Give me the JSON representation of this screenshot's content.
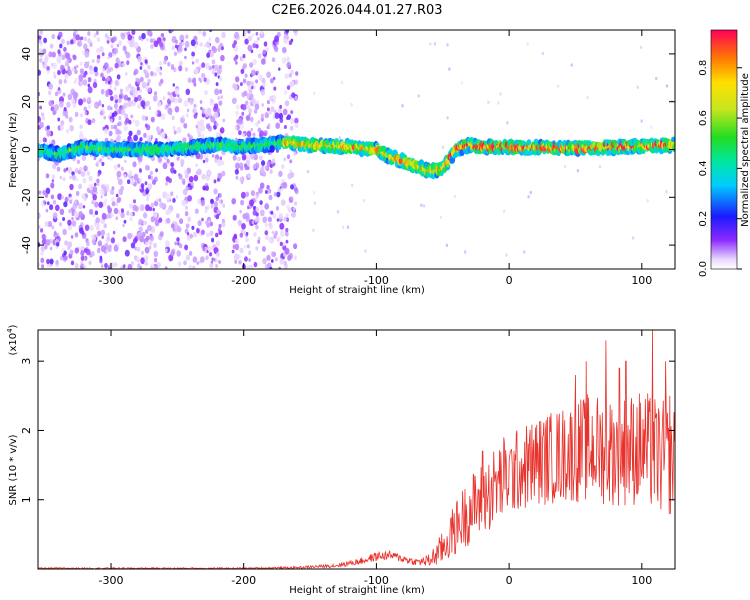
{
  "title": "C2E6.2026.044.01.27.R03",
  "spectrogram": {
    "type": "heatmap",
    "xlabel": "Height of straight line (km)",
    "ylabel": "Frequency (Hz)",
    "xlim": [
      -355,
      125
    ],
    "ylim": [
      -50,
      50
    ],
    "xticks": [
      -300,
      -200,
      -100,
      0,
      100
    ],
    "yticks": [
      -40,
      -20,
      0,
      20,
      40
    ],
    "noise_bands": [
      [
        -355,
        -300
      ],
      [
        -300,
        -215
      ],
      [
        -208,
        -160
      ]
    ],
    "signal_ridge": {
      "x": [
        -355,
        -340,
        -320,
        -300,
        -260,
        -220,
        -200,
        -170,
        -150,
        -120,
        -100,
        -90,
        -80,
        -70,
        -60,
        -50,
        -45,
        -40,
        -30,
        -20,
        0,
        40,
        80,
        125
      ],
      "y": [
        0,
        -2,
        1,
        0,
        0,
        2,
        1,
        3,
        2,
        1,
        0,
        -3,
        -5,
        -7,
        -9,
        -8,
        -4,
        0,
        2,
        1,
        1,
        0.5,
        1,
        2
      ]
    },
    "colorbar": {
      "label": "Normalized spectral amplitude",
      "range": [
        0,
        0.95
      ],
      "ticks": [
        "0.0",
        "0.2",
        "0.4",
        "0.6",
        "0.8"
      ]
    }
  },
  "chart_data": {
    "type": "line",
    "xlabel": "Height of straight line (km)",
    "ylabel": "SNR (10 * v/v)",
    "exponent_label": "(x10",
    "exponent_power": "4",
    "exponent_close": ")",
    "xlim": [
      -355,
      125
    ],
    "ylim": [
      0,
      3.45
    ],
    "xticks": [
      -300,
      -200,
      -100,
      0,
      100
    ],
    "yticks": [
      1,
      2,
      3
    ],
    "series": [
      {
        "name": "SNR",
        "color": "#e8322c",
        "envelope_x": [
          -355,
          -200,
          -160,
          -130,
          -110,
          -100,
          -90,
          -80,
          -70,
          -60,
          -50,
          -40,
          -30,
          -20,
          -10,
          0,
          20,
          40,
          60,
          80,
          100,
          115,
          125
        ],
        "envelope_mean": [
          0.01,
          0.01,
          0.02,
          0.05,
          0.12,
          0.18,
          0.2,
          0.15,
          0.1,
          0.12,
          0.3,
          0.6,
          0.85,
          1.0,
          1.2,
          1.35,
          1.55,
          1.65,
          1.75,
          1.7,
          1.75,
          1.6,
          1.55
        ],
        "envelope_spread": [
          0.01,
          0.01,
          0.015,
          0.03,
          0.05,
          0.07,
          0.06,
          0.06,
          0.05,
          0.1,
          0.25,
          0.4,
          0.5,
          0.55,
          0.6,
          0.6,
          0.65,
          0.7,
          0.8,
          0.8,
          0.85,
          0.85,
          0.8
        ],
        "spikes": [
          [
            -20,
            1.7
          ],
          [
            -4,
            1.9
          ],
          [
            50,
            2.8
          ],
          [
            58,
            3.0
          ],
          [
            73,
            3.3
          ],
          [
            83,
            2.9
          ],
          [
            88,
            3.0
          ],
          [
            108,
            3.45
          ],
          [
            118,
            3.0
          ],
          [
            121,
            2.5
          ]
        ]
      }
    ]
  }
}
